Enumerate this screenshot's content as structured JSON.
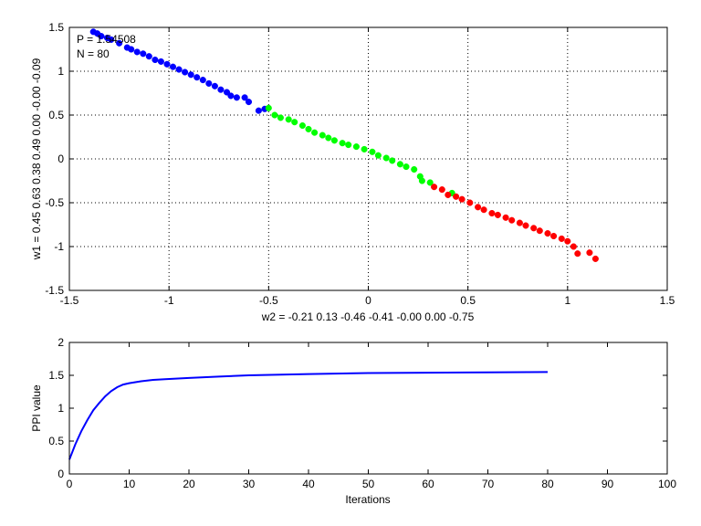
{
  "chart_data": [
    {
      "type": "scatter",
      "title": "",
      "xlabel": "w2 = -0.21  0.13  -0.46  -0.41  -0.00  0.00  -0.75",
      "ylabel": "w1 = 0.45  0.63  0.38  0.49  0.00  -0.00  -0.09",
      "xlim": [
        -1.5,
        1.5
      ],
      "ylim": [
        -1.5,
        1.5
      ],
      "xticks": [
        -1.5,
        -1,
        -0.5,
        0,
        0.5,
        1,
        1.5
      ],
      "yticks": [
        -1.5,
        -1,
        -0.5,
        0,
        0.5,
        1,
        1.5
      ],
      "xtick_labels": [
        "-1.5",
        "-1",
        "-0.5",
        "0",
        "0.5",
        "1",
        "1.5"
      ],
      "ytick_labels": [
        "-1.5",
        "-1",
        "-0.5",
        "0",
        "0.5",
        "1",
        "1.5"
      ],
      "grid": true,
      "annotations": [
        "P = 1.54508",
        "N = 80"
      ],
      "series": [
        {
          "color": "#0000ff",
          "points": [
            [
              -1.38,
              1.45
            ],
            [
              -1.36,
              1.43
            ],
            [
              -1.34,
              1.4
            ],
            [
              -1.31,
              1.38
            ],
            [
              -1.29,
              1.36
            ],
            [
              -1.25,
              1.32
            ],
            [
              -1.21,
              1.27
            ],
            [
              -1.19,
              1.25
            ],
            [
              -1.16,
              1.22
            ],
            [
              -1.13,
              1.2
            ],
            [
              -1.1,
              1.17
            ],
            [
              -1.07,
              1.13
            ],
            [
              -1.04,
              1.11
            ],
            [
              -1.01,
              1.08
            ],
            [
              -0.98,
              1.05
            ],
            [
              -0.95,
              1.02
            ],
            [
              -0.92,
              0.99
            ],
            [
              -0.89,
              0.96
            ],
            [
              -0.86,
              0.93
            ],
            [
              -0.83,
              0.9
            ],
            [
              -0.8,
              0.86
            ],
            [
              -0.77,
              0.83
            ],
            [
              -0.74,
              0.79
            ],
            [
              -0.71,
              0.76
            ],
            [
              -0.69,
              0.72
            ],
            [
              -0.66,
              0.7
            ],
            [
              -0.62,
              0.7
            ],
            [
              -0.6,
              0.65
            ],
            [
              -0.55,
              0.55
            ],
            [
              -0.52,
              0.57
            ]
          ]
        },
        {
          "color": "#00ff00",
          "points": [
            [
              -0.5,
              0.58
            ],
            [
              -0.47,
              0.5
            ],
            [
              -0.44,
              0.47
            ],
            [
              -0.4,
              0.45
            ],
            [
              -0.37,
              0.42
            ],
            [
              -0.33,
              0.38
            ],
            [
              -0.3,
              0.34
            ],
            [
              -0.27,
              0.3
            ],
            [
              -0.23,
              0.27
            ],
            [
              -0.2,
              0.24
            ],
            [
              -0.17,
              0.21
            ],
            [
              -0.13,
              0.18
            ],
            [
              -0.1,
              0.16
            ],
            [
              -0.06,
              0.14
            ],
            [
              -0.02,
              0.11
            ],
            [
              0.02,
              0.08
            ],
            [
              0.05,
              0.04
            ],
            [
              0.09,
              0.01
            ],
            [
              0.12,
              -0.02
            ],
            [
              0.16,
              -0.06
            ],
            [
              0.19,
              -0.09
            ],
            [
              0.23,
              -0.12
            ],
            [
              0.26,
              -0.2
            ],
            [
              0.27,
              -0.25
            ],
            [
              0.31,
              -0.27
            ],
            [
              0.42,
              -0.39
            ]
          ]
        },
        {
          "color": "#ff0000",
          "points": [
            [
              0.33,
              -0.32
            ],
            [
              0.37,
              -0.35
            ],
            [
              0.4,
              -0.41
            ],
            [
              0.44,
              -0.43
            ],
            [
              0.47,
              -0.46
            ],
            [
              0.51,
              -0.5
            ],
            [
              0.55,
              -0.55
            ],
            [
              0.58,
              -0.58
            ],
            [
              0.62,
              -0.62
            ],
            [
              0.65,
              -0.64
            ],
            [
              0.69,
              -0.67
            ],
            [
              0.72,
              -0.7
            ],
            [
              0.76,
              -0.73
            ],
            [
              0.79,
              -0.76
            ],
            [
              0.83,
              -0.79
            ],
            [
              0.86,
              -0.82
            ],
            [
              0.9,
              -0.85
            ],
            [
              0.93,
              -0.88
            ],
            [
              0.97,
              -0.91
            ],
            [
              1.0,
              -0.94
            ],
            [
              1.03,
              -1.0
            ],
            [
              1.05,
              -1.08
            ],
            [
              1.11,
              -1.07
            ],
            [
              1.14,
              -1.14
            ]
          ]
        }
      ]
    },
    {
      "type": "line",
      "title": "",
      "xlabel": "Iterations",
      "ylabel": "PPI value",
      "xlim": [
        0,
        100
      ],
      "ylim": [
        0,
        2
      ],
      "xticks": [
        0,
        10,
        20,
        30,
        40,
        50,
        60,
        70,
        80,
        90,
        100
      ],
      "yticks": [
        0,
        0.5,
        1,
        1.5,
        2
      ],
      "xtick_labels": [
        "0",
        "10",
        "20",
        "30",
        "40",
        "50",
        "60",
        "70",
        "80",
        "90",
        "100"
      ],
      "ytick_labels": [
        "0",
        "0.5",
        "1",
        "1.5",
        "2"
      ],
      "grid": false,
      "series": [
        {
          "color": "#0000ff",
          "x": [
            0,
            1,
            2,
            3,
            4,
            5,
            6,
            7,
            8,
            9,
            10,
            12,
            14,
            16,
            20,
            25,
            30,
            40,
            50,
            60,
            70,
            80
          ],
          "y": [
            0.22,
            0.45,
            0.65,
            0.82,
            0.97,
            1.08,
            1.18,
            1.26,
            1.32,
            1.36,
            1.38,
            1.41,
            1.43,
            1.44,
            1.46,
            1.48,
            1.5,
            1.52,
            1.535,
            1.54,
            1.545,
            1.55
          ]
        }
      ]
    }
  ]
}
